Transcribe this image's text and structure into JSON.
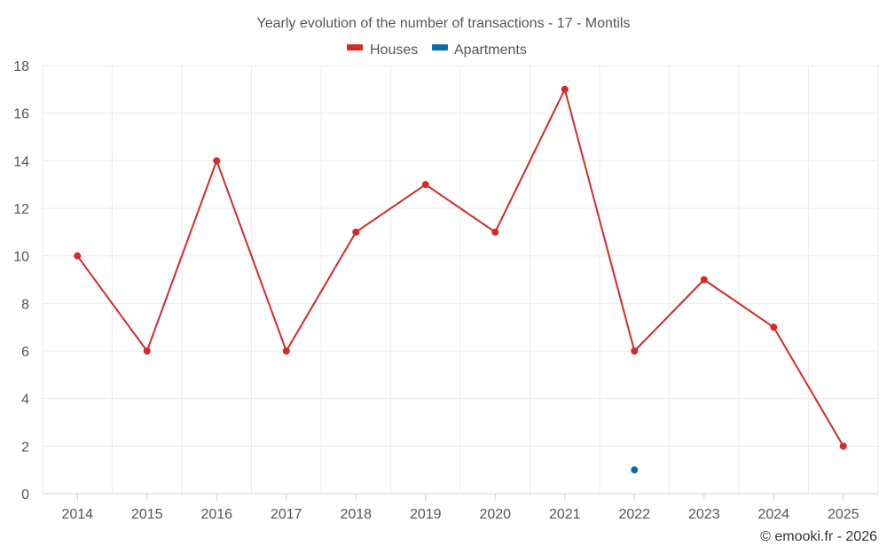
{
  "chart_data": {
    "type": "line",
    "title": "Yearly evolution of the number of transactions - 17 - Montils",
    "categories": [
      "2014",
      "2015",
      "2016",
      "2017",
      "2018",
      "2019",
      "2020",
      "2021",
      "2022",
      "2023",
      "2024",
      "2025"
    ],
    "series": [
      {
        "name": "Houses",
        "color": "#d32a2a",
        "values": [
          10,
          6,
          14,
          6,
          11,
          13,
          11,
          17,
          6,
          9,
          7,
          2
        ]
      },
      {
        "name": "Apartments",
        "color": "#0e6aa8",
        "values": [
          null,
          null,
          null,
          null,
          null,
          null,
          null,
          null,
          1,
          null,
          null,
          null
        ]
      }
    ],
    "ylim": [
      0,
      18
    ],
    "yticks": [
      0,
      2,
      4,
      6,
      8,
      10,
      12,
      14,
      16,
      18
    ],
    "xlabel": "",
    "ylabel": "",
    "grid": true,
    "legend": "top-center",
    "credit": "© emooki.fr - 2026"
  }
}
